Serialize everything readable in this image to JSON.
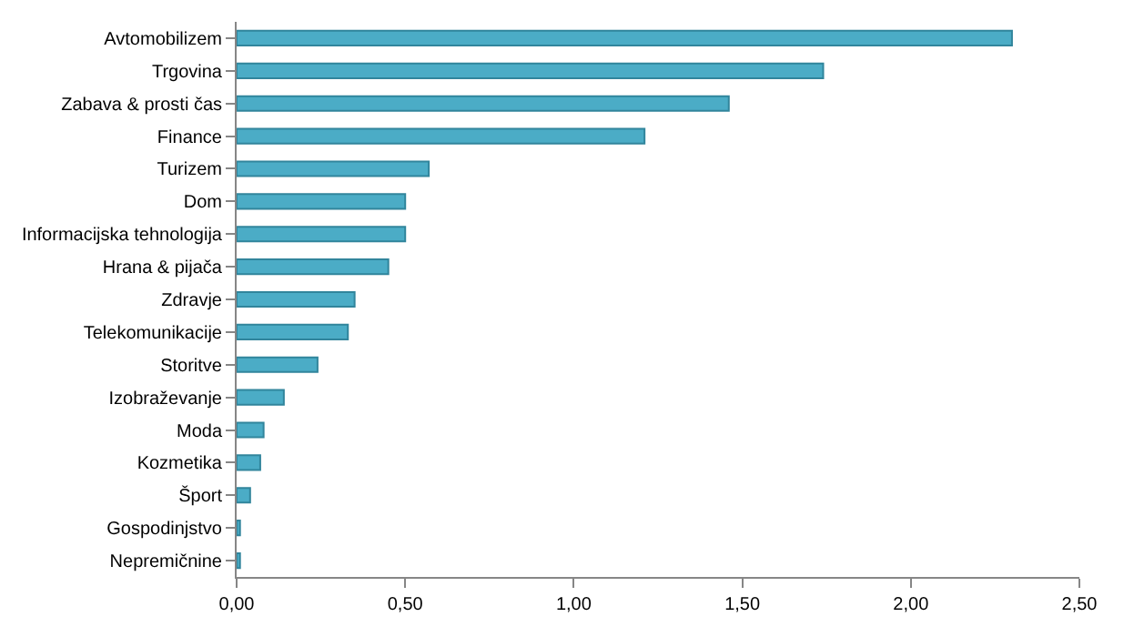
{
  "chart_data": {
    "type": "bar",
    "orientation": "horizontal",
    "categories": [
      "Avtomobilizem",
      "Trgovina",
      "Zabava & prosti čas",
      "Finance",
      "Turizem",
      "Dom",
      "Informacijska tehnologija",
      "Hrana & pijača",
      "Zdravje",
      "Telekomunikacije",
      "Storitve",
      "Izobraževanje",
      "Moda",
      "Kozmetika",
      "Šport",
      "Gospodinjstvo",
      "Nepremičnine"
    ],
    "values": [
      2.3,
      1.74,
      1.46,
      1.21,
      0.57,
      0.5,
      0.5,
      0.45,
      0.35,
      0.33,
      0.24,
      0.14,
      0.08,
      0.07,
      0.04,
      0.01,
      0.01
    ],
    "color": "#4bacc6",
    "xlim": [
      0,
      2.5
    ],
    "xticks": [
      {
        "value": 0,
        "label": "0,00"
      },
      {
        "value": 0.5,
        "label": "0,50"
      },
      {
        "value": 1,
        "label": "1,00"
      },
      {
        "value": 1.5,
        "label": "1,50"
      },
      {
        "value": 2,
        "label": "2,00"
      },
      {
        "value": 2.5,
        "label": "2,50"
      }
    ]
  }
}
